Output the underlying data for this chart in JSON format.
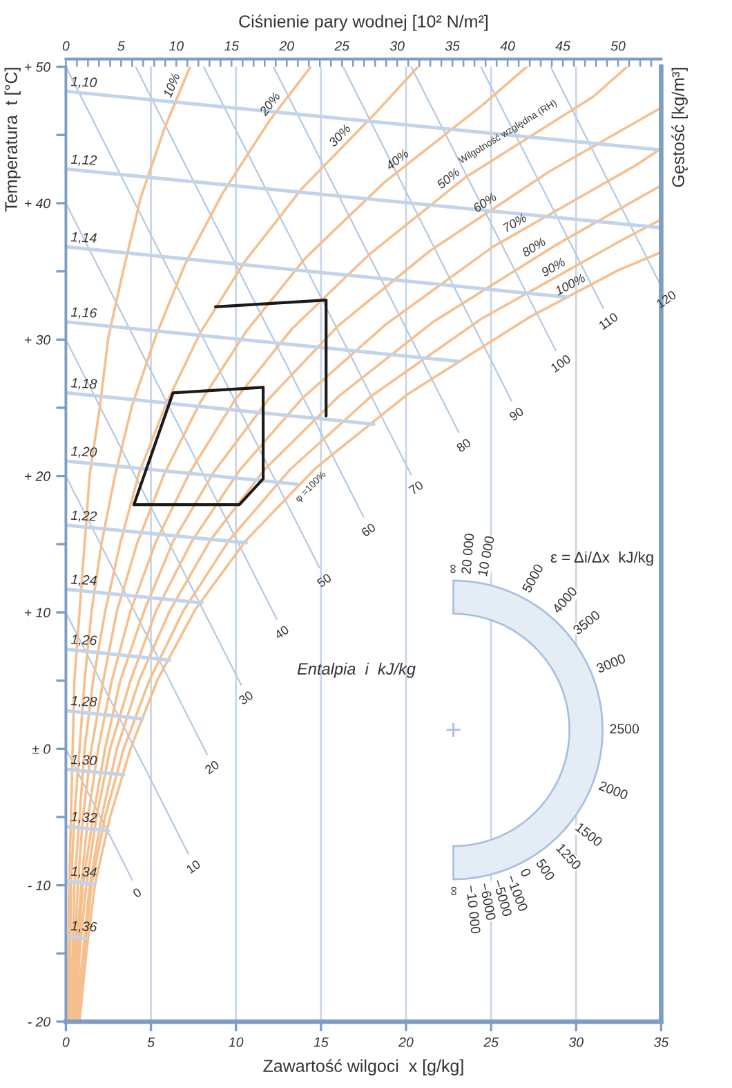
{
  "chart_data": {
    "type": "line",
    "xlabel": "Zawartość wilgoci  x [g/kg]",
    "ylabel": "Temperatura  t [°C]",
    "x2label": "Ciśnienie pary wodnej [10² N/m²]",
    "y2label": "Gęstość [kg/m³]",
    "xlim": [
      0,
      35
    ],
    "xticks": [
      0,
      5,
      10,
      15,
      20,
      25,
      30,
      35
    ],
    "ylim": [
      -20,
      50
    ],
    "yticks": [
      {
        "value": -20,
        "label": "- 20"
      },
      {
        "value": -15,
        "label": null
      },
      {
        "value": -10,
        "label": "- 10"
      },
      {
        "value": -5,
        "label": null
      },
      {
        "value": 0,
        "label": "± 0"
      },
      {
        "value": 5,
        "label": null
      },
      {
        "value": 10,
        "label": "+ 10"
      },
      {
        "value": 15,
        "label": null
      },
      {
        "value": 20,
        "label": "+ 20"
      },
      {
        "value": 25,
        "label": null
      },
      {
        "value": 30,
        "label": "+ 30"
      },
      {
        "value": 35,
        "label": null
      },
      {
        "value": 40,
        "label": "+ 40"
      },
      {
        "value": 45,
        "label": null
      },
      {
        "value": 50,
        "label": "+ 50"
      }
    ],
    "x2lim": [
      0,
      53.9
    ],
    "x2ticks": [
      0,
      {
        "value": 1,
        "label": null
      },
      {
        "value": 2,
        "label": null
      },
      {
        "value": 3,
        "label": null
      },
      {
        "value": 4,
        "label": null
      },
      5,
      {
        "value": 6,
        "label": null
      },
      {
        "value": 7,
        "label": null
      },
      {
        "value": 8,
        "label": null
      },
      {
        "value": 9,
        "label": null
      },
      10,
      {
        "value": 11,
        "label": null
      },
      {
        "value": 12,
        "label": null
      },
      {
        "value": 13,
        "label": null
      },
      {
        "value": 14,
        "label": null
      },
      15,
      {
        "value": 16,
        "label": null
      },
      {
        "value": 17,
        "label": null
      },
      {
        "value": 18,
        "label": null
      },
      {
        "value": 19,
        "label": null
      },
      20,
      {
        "value": 21,
        "label": null
      },
      {
        "value": 22,
        "label": null
      },
      {
        "value": 23,
        "label": null
      },
      {
        "value": 24,
        "label": null
      },
      25,
      {
        "value": 26,
        "label": null
      },
      {
        "value": 27,
        "label": null
      },
      {
        "value": 28,
        "label": null
      },
      {
        "value": 29,
        "label": null
      },
      30,
      {
        "value": 31,
        "label": null
      },
      {
        "value": 32,
        "label": null
      },
      {
        "value": 33,
        "label": null
      },
      {
        "value": 34,
        "label": null
      },
      35,
      {
        "value": 36,
        "label": null
      },
      {
        "value": 37,
        "label": null
      },
      {
        "value": 38,
        "label": null
      },
      {
        "value": 39,
        "label": null
      },
      40,
      {
        "value": 41,
        "label": null
      },
      {
        "value": 42,
        "label": null
      },
      {
        "value": 43,
        "label": null
      },
      {
        "value": 44,
        "label": null
      },
      45,
      {
        "value": 46,
        "label": null
      },
      {
        "value": 47,
        "label": null
      },
      {
        "value": 48,
        "label": null
      },
      {
        "value": 49,
        "label": null
      },
      50,
      {
        "value": 51,
        "label": null
      },
      {
        "value": 52,
        "label": null
      },
      {
        "value": 53,
        "label": null
      }
    ],
    "grid": "x",
    "series": [
      {
        "name": "10%",
        "color": "#f5c08e",
        "x": [
          0.1,
          0.2,
          0.3,
          0.4,
          0.5,
          0.8,
          1.1,
          1.4,
          2.0,
          2.5,
          3.4,
          4.4,
          5.8,
          7.3
        ],
        "values": [
          -20,
          -10,
          -5,
          0,
          5,
          10,
          15,
          20.1,
          25.1,
          30.2,
          35.2,
          40.4,
          45.5,
          50
        ]
      },
      {
        "name": "20%",
        "color": "#f5c08e",
        "x": [
          0.2,
          0.3,
          0.5,
          0.8,
          1.1,
          1.5,
          2.1,
          2.9,
          3.9,
          5.3,
          7.0,
          9.2,
          12.0,
          14.4
        ],
        "values": [
          -20,
          -10,
          -5,
          0,
          5,
          10,
          15.1,
          20.1,
          25.2,
          30.3,
          35.5,
          40.7,
          46.1,
          50
        ]
      },
      {
        "name": "30%",
        "color": "#f5c08e",
        "x": [
          0.2,
          0.4,
          0.5,
          0.8,
          1.1,
          1.6,
          2.3,
          3.2,
          4.3,
          5.9,
          7.9,
          10.5,
          13.9,
          18.2,
          20.7
        ],
        "values": [
          -20,
          -15,
          -10,
          -5,
          0,
          5,
          10,
          15.1,
          20.2,
          25.3,
          30.5,
          35.7,
          41.1,
          46.6,
          50
        ]
      },
      {
        "name": "40%",
        "color": "#f5c08e",
        "x": [
          0.3,
          0.5,
          0.7,
          1.0,
          1.5,
          2.2,
          3.0,
          4.2,
          5.8,
          7.9,
          10.6,
          14.1,
          18.7,
          24.5,
          27.1
        ],
        "values": [
          -20,
          -15,
          -10,
          -5,
          0,
          5,
          10.1,
          15.1,
          20.2,
          25.4,
          30.6,
          36.0,
          41.5,
          47.2,
          50
        ]
      },
      {
        "name": "50%",
        "color": "#f5c08e",
        "x": [
          0.4,
          0.6,
          0.9,
          1.3,
          1.9,
          2.7,
          3.8,
          5.3,
          7.3,
          9.9,
          13.3,
          17.8,
          23.5,
          31.0,
          33.0
        ],
        "values": [
          -20,
          -15,
          -10,
          -5,
          0,
          5,
          10.1,
          15.2,
          20.3,
          25.5,
          30.8,
          36.2,
          41.9,
          47.8,
          50
        ]
      },
      {
        "name": "60%",
        "color": "#f5c08e",
        "x": [
          0.5,
          0.7,
          1.0,
          1.6,
          2.3,
          3.2,
          4.6,
          6.3,
          8.7,
          11.9,
          16.0,
          21.4,
          28.4,
          35
        ],
        "values": [
          -20,
          -15,
          -10,
          -5,
          0,
          5,
          10.1,
          15.2,
          20.3,
          25.6,
          31.0,
          36.5,
          42.3,
          47.0
        ]
      },
      {
        "name": "70%",
        "color": "#f5c08e",
        "x": [
          0.6,
          0.8,
          1.2,
          1.8,
          2.6,
          3.8,
          5.3,
          7.4,
          10.2,
          13.9,
          18.8,
          25.1,
          33.4,
          35
        ],
        "values": [
          -20,
          -15,
          -10,
          -5,
          0,
          5,
          10.1,
          15.2,
          20.4,
          25.7,
          31.1,
          36.8,
          42.7,
          44.0
        ]
      },
      {
        "name": "80%",
        "color": "#f5c08e",
        "x": [
          0.6,
          1.0,
          1.4,
          2.1,
          3.0,
          4.3,
          6.1,
          8.5,
          11.7,
          16.0,
          21.6,
          28.9,
          35
        ],
        "values": [
          -20,
          -15,
          -10,
          -5,
          0,
          5,
          10.1,
          15.3,
          20.5,
          25.8,
          31.3,
          37.0,
          41.3
        ]
      },
      {
        "name": "90%",
        "color": "#f5c08e",
        "x": [
          0.7,
          1.1,
          1.5,
          2.3,
          3.4,
          4.9,
          6.9,
          9.6,
          13.2,
          18.0,
          24.4,
          32.7,
          35
        ],
        "values": [
          -20,
          -15,
          -10,
          -5,
          0,
          5,
          10.1,
          15.3,
          20.5,
          25.9,
          31.5,
          37.3,
          38.8
        ]
      },
      {
        "name": "100%",
        "color": "#f5c08e",
        "x": [
          0.8,
          1.2,
          1.7,
          2.6,
          3.8,
          5.4,
          7.6,
          10.6,
          14.7,
          20.1,
          27.2,
          32.5,
          35
        ],
        "values": [
          -20,
          -15,
          -10,
          -5,
          0,
          5.1,
          10.2,
          15.3,
          20.6,
          26.0,
          31.6,
          35.1,
          36.4
        ]
      },
      {
        "name": "0",
        "color": "#b3c8e3",
        "x": [
          0,
          3.9
        ],
        "values": [
          0,
          -9.6
        ]
      },
      {
        "name": "10",
        "color": "#b3c8e3",
        "x": [
          0,
          7.2
        ],
        "values": [
          10,
          -7.7
        ]
      },
      {
        "name": "20",
        "color": "#b3c8e3",
        "x": [
          0,
          8.3
        ],
        "values": [
          20,
          -0.4
        ]
      },
      {
        "name": "30",
        "color": "#b3c8e3",
        "x": [
          0,
          10.3
        ],
        "values": [
          30,
          4.7
        ]
      },
      {
        "name": "40",
        "color": "#b3c8e3",
        "x": [
          0,
          12.4
        ],
        "values": [
          40,
          9.5
        ]
      },
      {
        "name": "50",
        "color": "#b3c8e3",
        "x": [
          0,
          14.9
        ],
        "values": [
          50,
          13.3
        ]
      },
      {
        "name": "60",
        "color": "#b3c8e3",
        "x": [
          4.1,
          17.5
        ],
        "values": [
          50,
          17.0
        ]
      },
      {
        "name": "70",
        "color": "#b3c8e3",
        "x": [
          8.1,
          20.3
        ],
        "values": [
          50,
          20.1
        ]
      },
      {
        "name": "80",
        "color": "#b3c8e3",
        "x": [
          12.2,
          23.1
        ],
        "values": [
          50,
          23.2
        ]
      },
      {
        "name": "90",
        "color": "#b3c8e3",
        "x": [
          16.3,
          26.2
        ],
        "values": [
          50,
          25.5
        ]
      },
      {
        "name": "100",
        "color": "#b3c8e3",
        "x": [
          20.3,
          28.8
        ],
        "values": [
          50,
          29.2
        ]
      },
      {
        "name": "110",
        "color": "#b3c8e3",
        "x": [
          24.4,
          31.6
        ],
        "values": [
          50,
          32.3
        ]
      },
      {
        "name": "120",
        "color": "#b3c8e3",
        "x": [
          28.5,
          35
        ],
        "values": [
          50,
          33.9
        ]
      },
      {
        "name": "1,10",
        "color": "#c3d4ea",
        "x": [
          0,
          35
        ],
        "values": [
          48.2,
          43.9
        ]
      },
      {
        "name": "1,12",
        "color": "#c3d4ea",
        "x": [
          0,
          35
        ],
        "values": [
          42.5,
          38.2
        ]
      },
      {
        "name": "1,14",
        "color": "#c3d4ea",
        "x": [
          0,
          29.5
        ],
        "values": [
          36.8,
          33.1
        ]
      },
      {
        "name": "1,16",
        "color": "#c3d4ea",
        "x": [
          0,
          23.1
        ],
        "values": [
          31.3,
          28.4
        ]
      },
      {
        "name": "1,18",
        "color": "#c3d4ea",
        "x": [
          0,
          18.1
        ],
        "values": [
          26.1,
          23.8
        ]
      },
      {
        "name": "1,20",
        "color": "#c3d4ea",
        "x": [
          0,
          13.6
        ],
        "values": [
          21.1,
          19.4
        ]
      },
      {
        "name": "1,22",
        "color": "#c3d4ea",
        "x": [
          0,
          10.6
        ],
        "values": [
          16.4,
          15.1
        ]
      },
      {
        "name": "1,24",
        "color": "#c3d4ea",
        "x": [
          0,
          8.0
        ],
        "values": [
          11.7,
          10.7
        ]
      },
      {
        "name": "1,26",
        "color": "#c3d4ea",
        "x": [
          0,
          6.1
        ],
        "values": [
          7.3,
          6.5
        ]
      },
      {
        "name": "1,28",
        "color": "#c3d4ea",
        "x": [
          0,
          4.5
        ],
        "values": [
          2.8,
          2.2
        ]
      },
      {
        "name": "1,30",
        "color": "#c3d4ea",
        "x": [
          0,
          3.4
        ],
        "values": [
          -1.5,
          -1.9
        ]
      },
      {
        "name": "1,32",
        "color": "#c3d4ea",
        "x": [
          0,
          2.5
        ],
        "values": [
          -5.7,
          -6.0
        ]
      },
      {
        "name": "1,34",
        "color": "#c3d4ea",
        "x": [
          0,
          1.7
        ],
        "values": [
          -9.7,
          -9.9
        ]
      },
      {
        "name": "1,36",
        "color": "#c3d4ea",
        "x": [
          0,
          1.2
        ],
        "values": [
          -13.7,
          -13.9
        ]
      },
      {
        "color": "#1a1a1a",
        "x": [
          8.8,
          15.3,
          15.3
        ],
        "values": [
          32.4,
          32.9,
          24.4
        ]
      },
      {
        "color": "#1a1a1a",
        "x": [
          4.0,
          6.3,
          11.6
        ],
        "values": [
          17.9,
          26.1,
          26.5
        ]
      },
      {
        "color": "#1a1a1a",
        "x": [
          4.0,
          10.2,
          11.6,
          11.6
        ],
        "values": [
          17.9,
          17.9,
          19.8,
          26.5
        ]
      }
    ],
    "annotations": [
      {
        "text": "Wilgotność względna (RH)",
        "x": 26.4,
        "y": 44.2
      },
      {
        "text": "φ =100%",
        "x": 14.0,
        "y": 19.7
      },
      "Entalpia  i  kJ/kg",
      "ε = Δi/Δx  kJ/kg",
      "∞",
      "20 000",
      "10 000",
      "5000",
      "4000",
      "3500",
      "3000",
      "2500",
      "2000",
      "1500",
      "1250",
      "500",
      "0",
      "−1000",
      "−5000",
      "−6000",
      "−10 000",
      "∞"
    ]
  }
}
